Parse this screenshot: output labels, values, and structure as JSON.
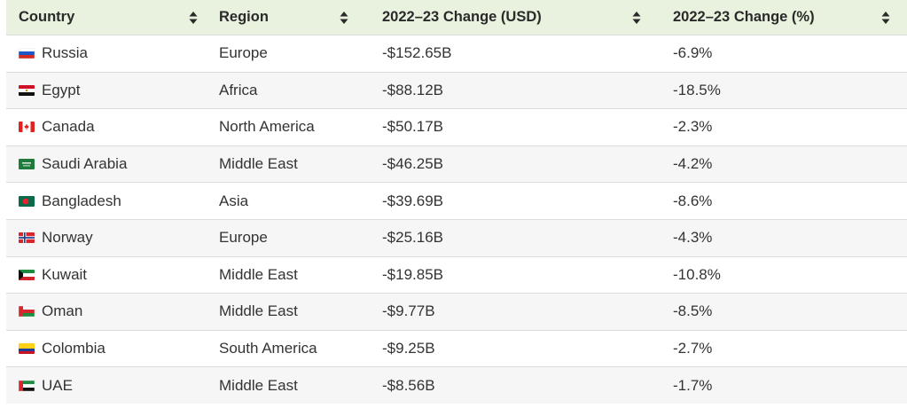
{
  "table": {
    "headers": [
      "Country",
      "Region",
      "2022–23 Change (USD)",
      "2022–23 Change (%)"
    ],
    "rows": [
      {
        "flag": "russia-flag-icon",
        "country": "Russia",
        "region": "Europe",
        "usd": "-$152.65B",
        "pct": "-6.9%"
      },
      {
        "flag": "egypt-flag-icon",
        "country": "Egypt",
        "region": "Africa",
        "usd": "-$88.12B",
        "pct": "-18.5%"
      },
      {
        "flag": "canada-flag-icon",
        "country": "Canada",
        "region": "North America",
        "usd": "-$50.17B",
        "pct": "-2.3%"
      },
      {
        "flag": "saudi-arabia-flag-icon",
        "country": "Saudi Arabia",
        "region": "Middle East",
        "usd": "-$46.25B",
        "pct": "-4.2%"
      },
      {
        "flag": "bangladesh-flag-icon",
        "country": "Bangladesh",
        "region": "Asia",
        "usd": "-$39.69B",
        "pct": "-8.6%"
      },
      {
        "flag": "norway-flag-icon",
        "country": "Norway",
        "region": "Europe",
        "usd": "-$25.16B",
        "pct": "-4.3%"
      },
      {
        "flag": "kuwait-flag-icon",
        "country": "Kuwait",
        "region": "Middle East",
        "usd": "-$19.85B",
        "pct": "-10.8%"
      },
      {
        "flag": "oman-flag-icon",
        "country": "Oman",
        "region": "Middle East",
        "usd": "-$9.77B",
        "pct": "-8.5%"
      },
      {
        "flag": "colombia-flag-icon",
        "country": "Colombia",
        "region": "South America",
        "usd": "-$9.25B",
        "pct": "-2.7%"
      },
      {
        "flag": "uae-flag-icon",
        "country": "UAE",
        "region": "Middle East",
        "usd": "-$8.56B",
        "pct": "-1.7%"
      }
    ]
  },
  "icons": {
    "sort": "sort-updown-icon"
  },
  "colors": {
    "header_bg": "#e8f2de",
    "row_alt_bg": "#f6f6f6"
  }
}
